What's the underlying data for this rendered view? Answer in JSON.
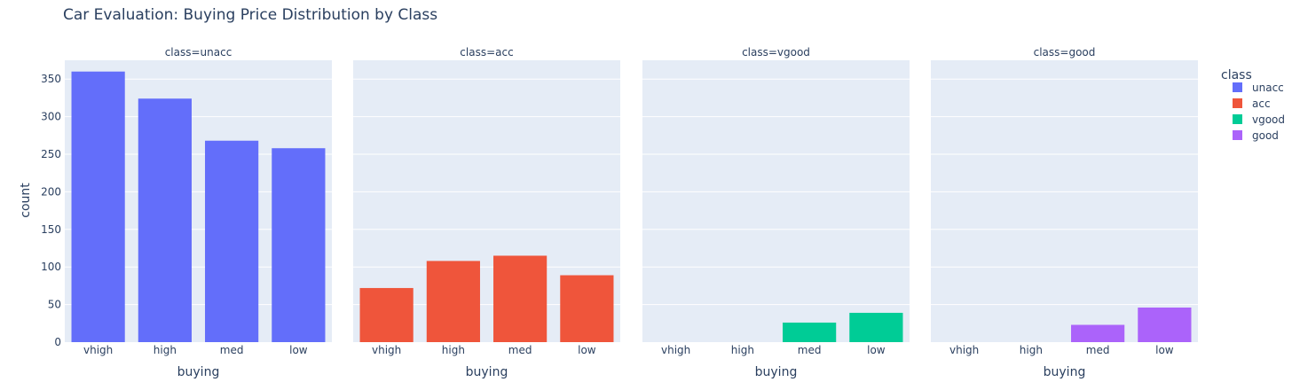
{
  "chart_data": {
    "type": "bar",
    "title": "Car Evaluation: Buying Price Distribution by Class",
    "categories": [
      "vhigh",
      "high",
      "med",
      "low"
    ],
    "xlabel": "buying",
    "ylabel": "count",
    "ylim": [
      0,
      375
    ],
    "yticks": [
      0,
      50,
      100,
      150,
      200,
      250,
      300,
      350
    ],
    "grid": true,
    "legend": {
      "title": "class",
      "placement": "right"
    },
    "series": [
      {
        "name": "unacc",
        "facet_label": "class=unacc",
        "color": "#636efa",
        "values": [
          360,
          324,
          268,
          258
        ]
      },
      {
        "name": "acc",
        "facet_label": "class=acc",
        "color": "#ef553b",
        "values": [
          72,
          108,
          115,
          89
        ]
      },
      {
        "name": "vgood",
        "facet_label": "class=vgood",
        "color": "#00cc96",
        "values": [
          0,
          0,
          26,
          39
        ]
      },
      {
        "name": "good",
        "facet_label": "class=good",
        "color": "#ab63fa",
        "values": [
          0,
          0,
          23,
          46
        ]
      }
    ],
    "colors": {
      "plot_background": "#e5ecf6",
      "gridline": "#ffffff",
      "text": "#2a3f5f"
    }
  }
}
